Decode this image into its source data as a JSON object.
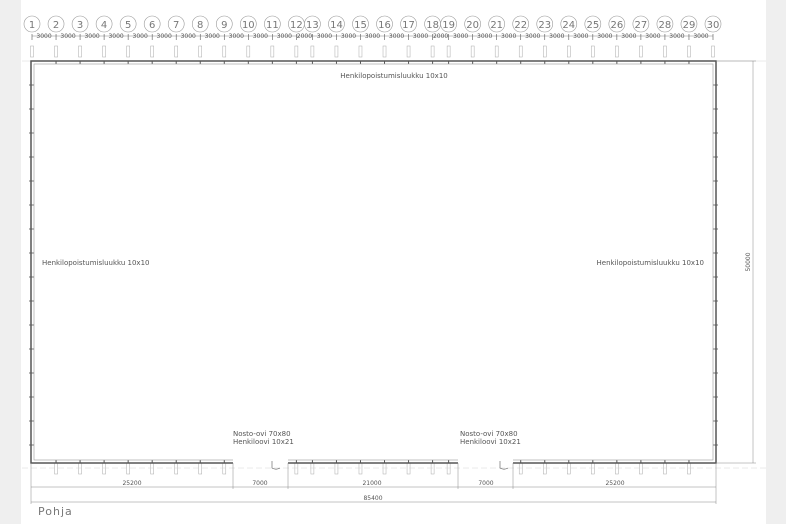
{
  "drawing": {
    "title": "Pohja",
    "axes": [
      "1",
      "2",
      "3",
      "4",
      "5",
      "6",
      "7",
      "8",
      "9",
      "10",
      "11",
      "12",
      "13",
      "14",
      "15",
      "16",
      "17",
      "18",
      "19",
      "20",
      "21",
      "22",
      "23",
      "24",
      "25",
      "26",
      "27",
      "28",
      "29",
      "30"
    ],
    "axis_spacing": [
      3000,
      3000,
      3000,
      3000,
      3000,
      3000,
      3000,
      3000,
      3000,
      3000,
      3000,
      2000,
      3000,
      3000,
      3000,
      3000,
      3000,
      2000,
      3000,
      3000,
      3000,
      3000,
      3000,
      3000,
      3000,
      3000,
      3000,
      3000,
      3000
    ],
    "labels": {
      "top_hatch": "Henkilopoistumisluukku 10x10",
      "left_hatch": "Henkilopoistumisluukku 10x10",
      "right_hatch": "Henkilopoistumisluukku 10x10",
      "door1_line1": "Nosto-ovi 70x80",
      "door1_line2": "Henkiloovi 10x21",
      "door2_line1": "Nosto-ovi 70x80",
      "door2_line2": "Henkiloovi 10x21"
    },
    "bottom_dims": [
      "25200",
      "7000",
      "21000",
      "7000",
      "25200"
    ],
    "total_width": "85400",
    "height_dim": "50000",
    "line_color": "#555555",
    "background_band_color": "#efefef"
  }
}
